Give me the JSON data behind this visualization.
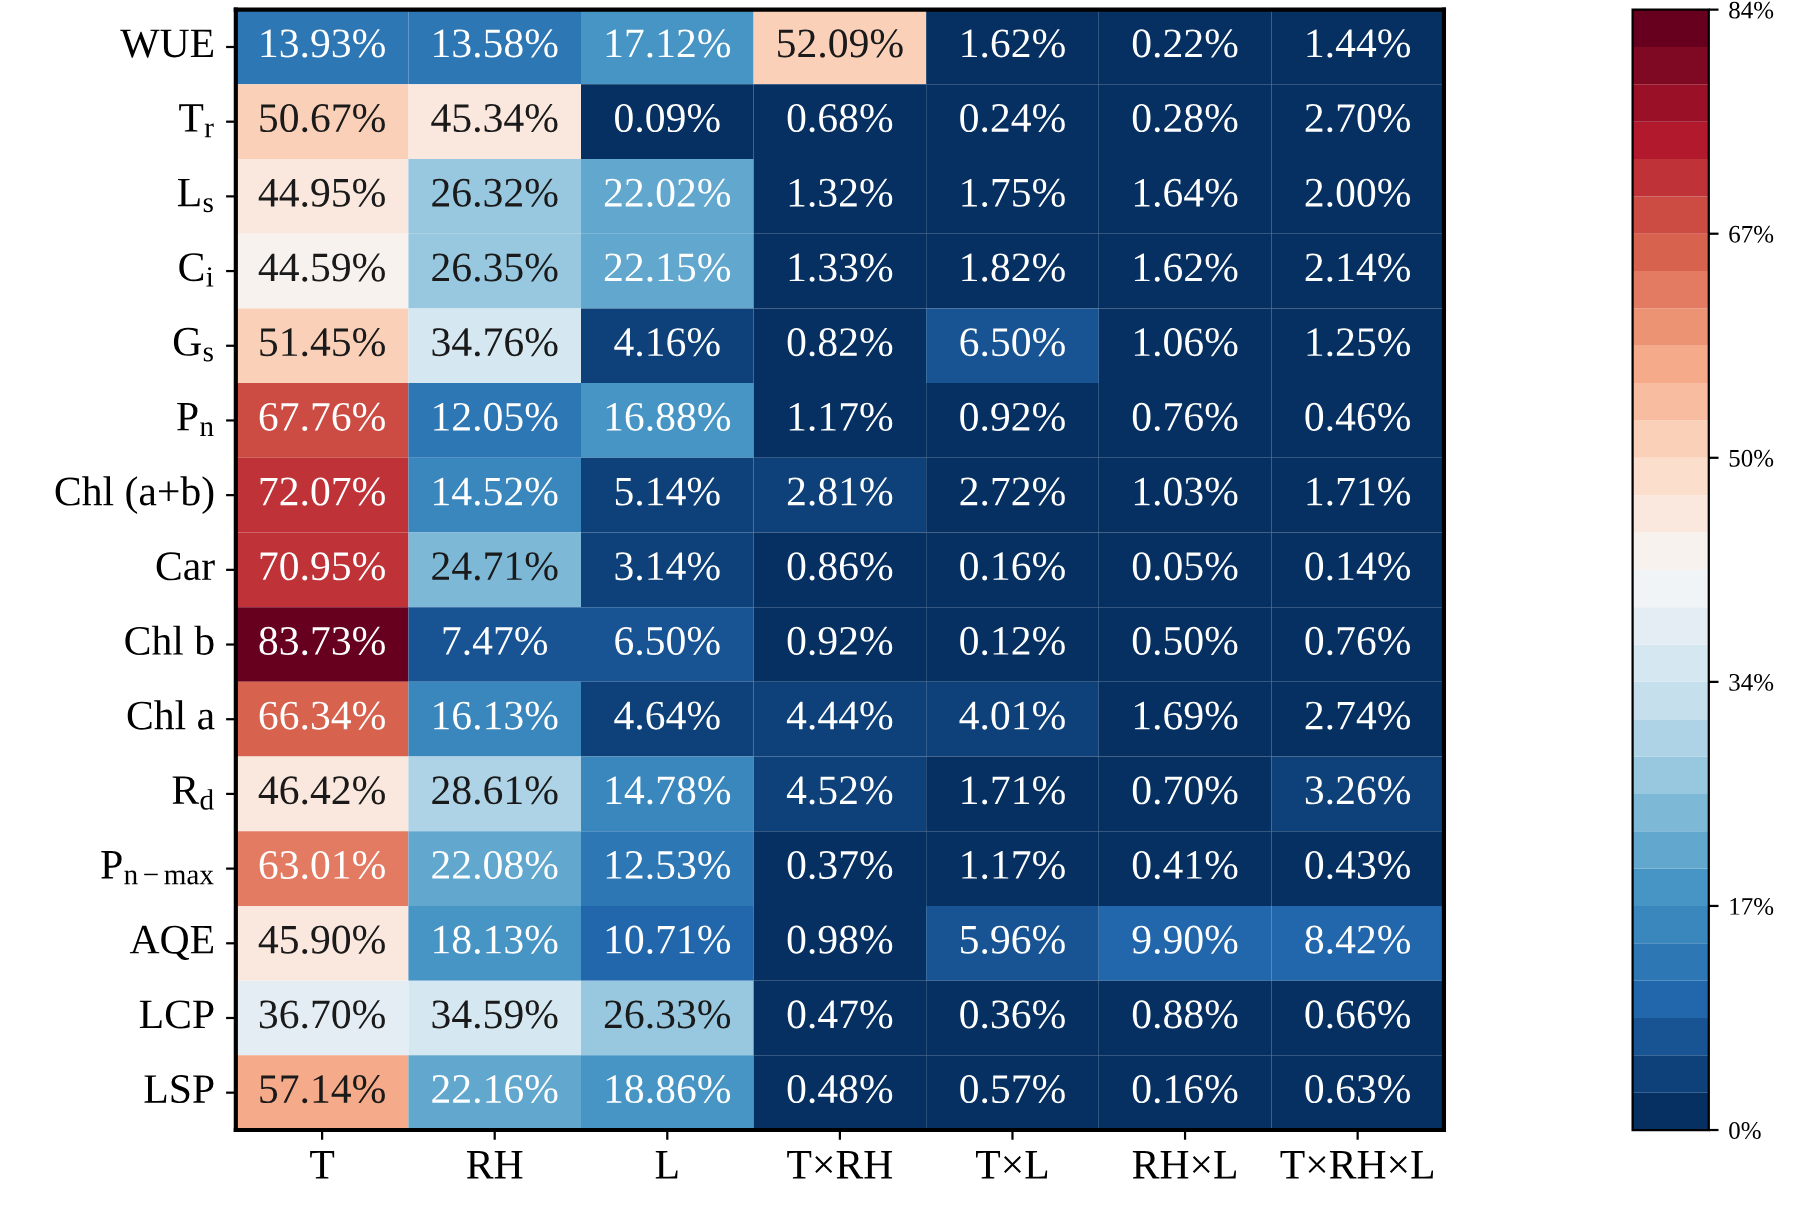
{
  "chart_data": {
    "type": "heatmap",
    "categories": [
      "T",
      "RH",
      "L",
      "T×RH",
      "T×L",
      "RH×L",
      "T×RH×L"
    ],
    "y_categories": [
      "WUE",
      "T$_{r}$",
      "L$_{s}$",
      "C$_{i}$",
      "G$_{s}$",
      "P$_{n}$",
      "Chl (a+b)",
      "Car",
      "Chl b",
      "Chl a",
      "R$_{d}$",
      "P$_{n−max}$",
      "AQE",
      "LCP",
      "LSP"
    ],
    "cells": [
      [
        13.93,
        13.58,
        17.12,
        52.09,
        1.62,
        0.22,
        1.44
      ],
      [
        50.67,
        45.34,
        0.09,
        0.68,
        0.24,
        0.28,
        2.7
      ],
      [
        44.95,
        26.32,
        22.02,
        1.32,
        1.75,
        1.64,
        2.0
      ],
      [
        44.59,
        26.35,
        22.15,
        1.33,
        1.82,
        1.62,
        2.14
      ],
      [
        51.45,
        34.76,
        4.16,
        0.82,
        6.5,
        1.06,
        1.25
      ],
      [
        67.76,
        12.05,
        16.88,
        1.17,
        0.92,
        0.76,
        0.46
      ],
      [
        72.07,
        14.52,
        5.14,
        2.81,
        2.72,
        1.03,
        1.71
      ],
      [
        70.95,
        24.71,
        3.14,
        0.86,
        0.16,
        0.05,
        0.14
      ],
      [
        83.73,
        7.47,
        6.5,
        0.92,
        0.12,
        0.5,
        0.76
      ],
      [
        66.34,
        16.13,
        4.64,
        4.44,
        4.01,
        1.69,
        2.74
      ],
      [
        46.42,
        28.61,
        14.78,
        4.52,
        1.71,
        0.7,
        3.26
      ],
      [
        63.01,
        22.08,
        12.53,
        0.37,
        1.17,
        0.41,
        0.43
      ],
      [
        45.9,
        18.13,
        10.71,
        0.98,
        5.96,
        9.9,
        8.42
      ],
      [
        36.7,
        34.59,
        26.33,
        0.47,
        0.36,
        0.88,
        0.66
      ],
      [
        57.14,
        22.16,
        18.86,
        0.48,
        0.57,
        0.16,
        0.63
      ]
    ],
    "cell_labels": [
      [
        "13.93%",
        "13.58%",
        "17.12%",
        "52.09%",
        "1.62%",
        "0.22%",
        "1.44%"
      ],
      [
        "50.67%",
        "45.34%",
        "0.09%",
        "0.68%",
        "0.24%",
        "0.28%",
        "2.70%"
      ],
      [
        "44.95%",
        "26.32%",
        "22.02%",
        "1.32%",
        "1.75%",
        "1.64%",
        "2.00%"
      ],
      [
        "44.59%",
        "26.35%",
        "22.15%",
        "1.33%",
        "1.82%",
        "1.62%",
        "2.14%"
      ],
      [
        "51.45%",
        "34.76%",
        "4.16%",
        "0.82%",
        "6.50%",
        "1.06%",
        "1.25%"
      ],
      [
        "67.76%",
        "12.05%",
        "16.88%",
        "1.17%",
        "0.92%",
        "0.76%",
        "0.46%"
      ],
      [
        "72.07%",
        "14.52%",
        "5.14%",
        "2.81%",
        "2.72%",
        "1.03%",
        "1.71%"
      ],
      [
        "70.95%",
        "24.71%",
        "3.14%",
        "0.86%",
        "0.16%",
        "0.05%",
        "0.14%"
      ],
      [
        "83.73%",
        "7.47%",
        "6.50%",
        "0.92%",
        "0.12%",
        "0.50%",
        "0.76%"
      ],
      [
        "66.34%",
        "16.13%",
        "4.64%",
        "4.44%",
        "4.01%",
        "1.69%",
        "2.74%"
      ],
      [
        "46.42%",
        "28.61%",
        "14.78%",
        "4.52%",
        "1.71%",
        "0.70%",
        "3.26%"
      ],
      [
        "63.01%",
        "22.08%",
        "12.53%",
        "0.37%",
        "1.17%",
        "0.41%",
        "0.43%"
      ],
      [
        "45.90%",
        "18.13%",
        "10.71%",
        "0.98%",
        "5.96%",
        "9.90%",
        "8.42%"
      ],
      [
        "36.70%",
        "34.59%",
        "26.33%",
        "0.47%",
        "0.36%",
        "0.88%",
        "0.66%"
      ],
      [
        "57.14%",
        "22.16%",
        "18.86%",
        "0.48%",
        "0.57%",
        "0.16%",
        "0.63%"
      ]
    ],
    "clim": [
      0,
      84
    ],
    "cticks": [
      {
        "value": 0,
        "label": "0%"
      },
      {
        "value": 16.8,
        "label": "17%"
      },
      {
        "value": 33.6,
        "label": "34%"
      },
      {
        "value": 50.4,
        "label": "50%"
      },
      {
        "value": 67.2,
        "label": "67%"
      },
      {
        "value": 84,
        "label": "84%"
      }
    ]
  }
}
